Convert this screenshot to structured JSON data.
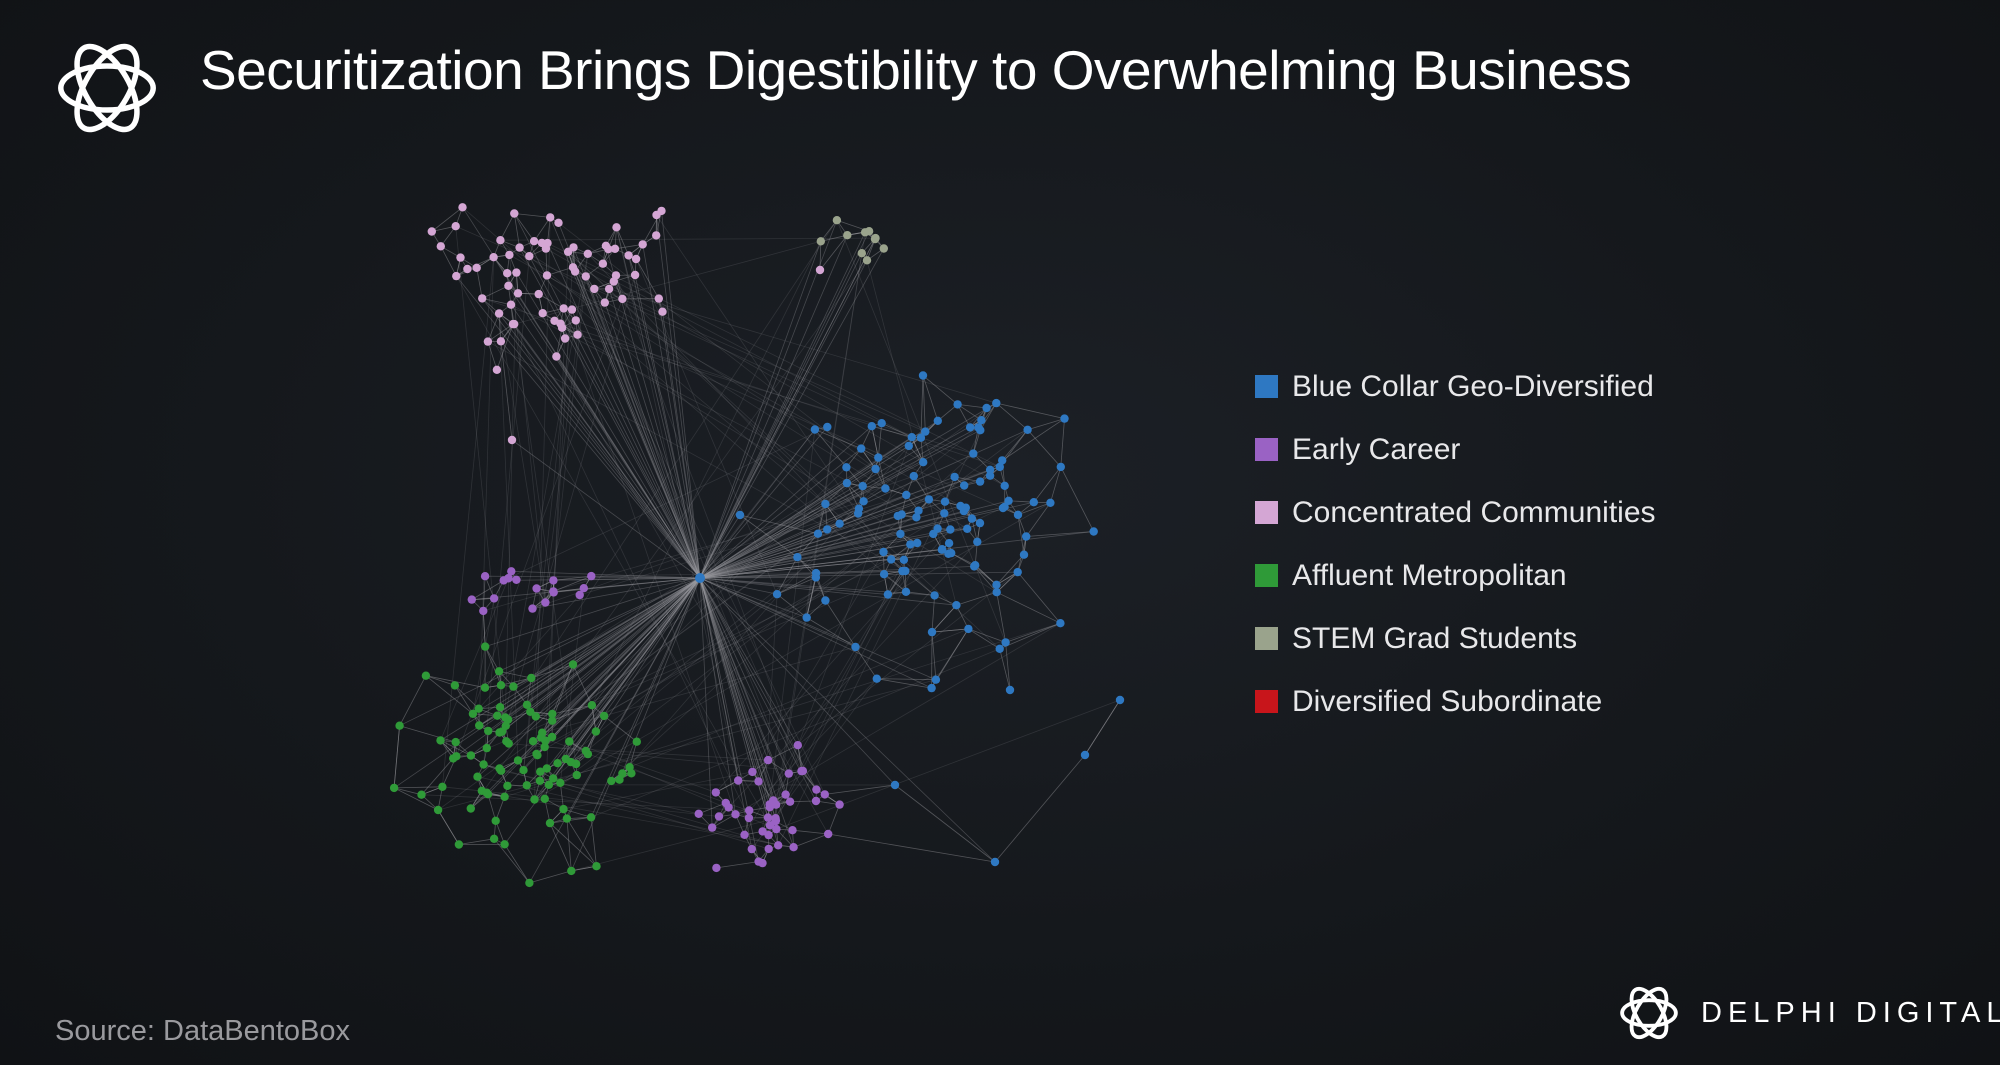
{
  "header": {
    "title": "Securitization Brings Digestibility to Overwhelming Business",
    "logo_icon": "interlaced-ring-logo-icon"
  },
  "chart_data": {
    "type": "network",
    "title": "Securitization Brings Digestibility to Overwhelming Business",
    "legend_position": "right",
    "hub": {
      "category": "Blue Collar Geo-Diversified"
    },
    "categories": [
      {
        "name": "Blue Collar Geo-Diversified",
        "color": "#2e78c2"
      },
      {
        "name": "Early Career",
        "color": "#9a62c4"
      },
      {
        "name": "Concentrated Communities",
        "color": "#d4a6d4"
      },
      {
        "name": "Affluent Metropolitan",
        "color": "#2f9a38"
      },
      {
        "name": "STEM Grad Students",
        "color": "#9aa38c"
      },
      {
        "name": "Diversified Subordinate",
        "color": "#c8151b"
      }
    ],
    "edge_color": "#9b9ca0"
  },
  "footer": {
    "source": "Source: DataBentoBox",
    "brand_name": "DELPHI DIGITAL",
    "brand_icon": "interlaced-ring-logo-icon"
  }
}
